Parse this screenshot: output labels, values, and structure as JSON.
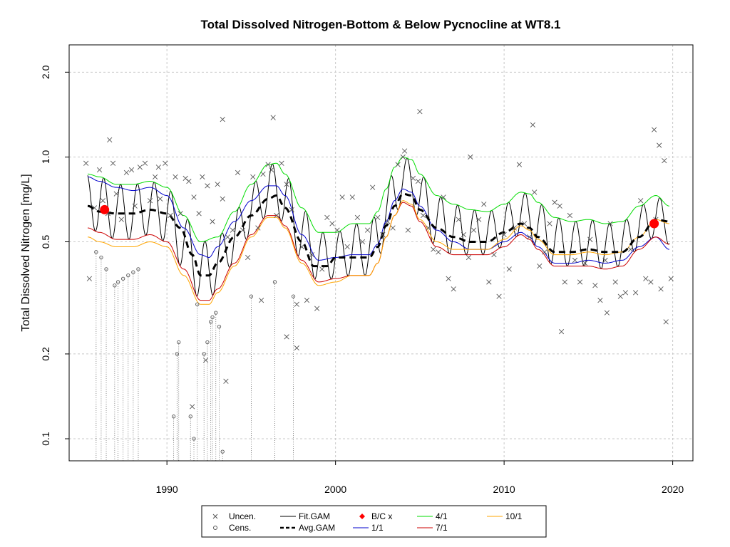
{
  "chart_data": {
    "type": "scatter",
    "title": "Total Dissolved Nitrogen-Bottom & Below Pycnocline at WT8.1",
    "xlabel": "",
    "ylabel": "Total Dissolved Nitrogen [mg/L]",
    "xlim": [
      1984.2,
      2021.2
    ],
    "ylim": [
      0.0835,
      2.5
    ],
    "y_scale": "log",
    "x_ticks": [
      1990,
      2000,
      2010,
      2020
    ],
    "y_ticks": [
      0.1,
      0.2,
      0.5,
      1.0,
      2.0
    ],
    "y_tick_labels": [
      "0.1",
      "0.2",
      "0.5",
      "1.0",
      "2.0"
    ],
    "grid": true,
    "legend_position": "bottom",
    "legend": [
      {
        "label": "Uncen.",
        "kind": "x-marker",
        "color": "#555555"
      },
      {
        "label": "Cens.",
        "kind": "circle-marker",
        "color": "#555555"
      },
      {
        "label": "Fit.GAM",
        "kind": "line",
        "color": "#000000"
      },
      {
        "label": "Avg.GAM",
        "kind": "dashed-line",
        "color": "#000000"
      },
      {
        "label": "B/C x",
        "kind": "diamond-marker",
        "color": "#ff0000"
      },
      {
        "label": "1/1",
        "kind": "line",
        "color": "#0000cc"
      },
      {
        "label": "4/1",
        "kind": "line",
        "color": "#00dd00"
      },
      {
        "label": "7/1",
        "kind": "line",
        "color": "#cc0000"
      },
      {
        "label": "10/1",
        "kind": "line",
        "color": "#ffa500"
      }
    ],
    "series": [
      {
        "name": "Avg.GAM",
        "x": [
          1985.3,
          1986,
          1987,
          1988,
          1989,
          1990,
          1990.8,
          1991.5,
          1992,
          1992.5,
          1993,
          1994,
          1995,
          1996,
          1996.5,
          1997,
          1998,
          1998.7,
          1999.5,
          2000,
          2001,
          2002,
          2002.5,
          2003,
          2003.5,
          2004,
          2004.5,
          2005,
          2006,
          2007,
          2008,
          2009,
          2010,
          2011,
          2011.5,
          2012,
          2013,
          2014,
          2015,
          2016,
          2017,
          2018,
          2019,
          2019.8
        ],
        "y": [
          0.67,
          0.64,
          0.63,
          0.63,
          0.65,
          0.63,
          0.56,
          0.45,
          0.38,
          0.38,
          0.42,
          0.52,
          0.62,
          0.71,
          0.73,
          0.66,
          0.5,
          0.41,
          0.41,
          0.44,
          0.44,
          0.44,
          0.48,
          0.57,
          0.67,
          0.74,
          0.73,
          0.65,
          0.56,
          0.52,
          0.5,
          0.5,
          0.54,
          0.58,
          0.56,
          0.52,
          0.46,
          0.46,
          0.47,
          0.46,
          0.46,
          0.52,
          0.6,
          0.59
        ]
      },
      {
        "name": "4/1",
        "x": [
          1985.3,
          1986,
          1987,
          1988,
          1989,
          1990,
          1991,
          1992,
          1993,
          1994,
          1995,
          1996,
          1996.5,
          1997,
          1998,
          1999,
          2000,
          2001,
          2002,
          2002.5,
          2003,
          2003.5,
          2004,
          2004.5,
          2005,
          2006,
          2007,
          2008,
          2009,
          2010,
          2011,
          2011.5,
          2012,
          2013,
          2014,
          2015,
          2016,
          2017,
          2018,
          2019,
          2019.8
        ],
        "y": [
          0.87,
          0.85,
          0.8,
          0.8,
          0.82,
          0.78,
          0.62,
          0.5,
          0.52,
          0.64,
          0.8,
          0.94,
          0.95,
          0.87,
          0.66,
          0.54,
          0.54,
          0.58,
          0.58,
          0.64,
          0.77,
          0.92,
          1.0,
          0.98,
          0.87,
          0.73,
          0.68,
          0.65,
          0.64,
          0.68,
          0.75,
          0.74,
          0.69,
          0.61,
          0.59,
          0.6,
          0.58,
          0.59,
          0.67,
          0.73,
          0.67
        ]
      },
      {
        "name": "1/1",
        "x": [
          1985.3,
          1986,
          1987,
          1988,
          1989,
          1990,
          1991,
          1992,
          1992.5,
          1993,
          1994,
          1995,
          1996,
          1996.5,
          1997,
          1998,
          1999,
          2000,
          2001,
          2002,
          2002.5,
          2003,
          2003.5,
          2004,
          2004.5,
          2005,
          2006,
          2007,
          2008,
          2009,
          2010,
          2011,
          2011.5,
          2012,
          2013,
          2014,
          2015,
          2016,
          2017,
          2018,
          2019,
          2019.8
        ],
        "y": [
          0.85,
          0.82,
          0.78,
          0.76,
          0.78,
          0.73,
          0.56,
          0.45,
          0.44,
          0.48,
          0.59,
          0.7,
          0.79,
          0.79,
          0.73,
          0.53,
          0.43,
          0.44,
          0.45,
          0.45,
          0.49,
          0.59,
          0.7,
          0.77,
          0.75,
          0.67,
          0.55,
          0.5,
          0.47,
          0.47,
          0.5,
          0.54,
          0.52,
          0.48,
          0.42,
          0.42,
          0.43,
          0.42,
          0.43,
          0.48,
          0.52,
          0.47
        ]
      },
      {
        "name": "7/1",
        "x": [
          1985.3,
          1986,
          1987,
          1988,
          1989,
          1990,
          1991,
          1992,
          1992.5,
          1993,
          1994,
          1995,
          1996,
          1996.5,
          1997,
          1998,
          1999,
          2000,
          2001,
          2002,
          2002.5,
          2003,
          2003.5,
          2004,
          2004.5,
          2005,
          2006,
          2007,
          2008,
          2009,
          2010,
          2011,
          2011.5,
          2012,
          2013,
          2014,
          2015,
          2016,
          2017,
          2018,
          2019,
          2019.8
        ],
        "y": [
          0.56,
          0.54,
          0.51,
          0.51,
          0.53,
          0.5,
          0.4,
          0.31,
          0.31,
          0.34,
          0.42,
          0.53,
          0.62,
          0.62,
          0.57,
          0.43,
          0.36,
          0.37,
          0.38,
          0.38,
          0.42,
          0.52,
          0.62,
          0.69,
          0.67,
          0.59,
          0.48,
          0.45,
          0.45,
          0.45,
          0.48,
          0.53,
          0.51,
          0.47,
          0.41,
          0.41,
          0.41,
          0.4,
          0.41,
          0.47,
          0.52,
          0.49
        ]
      },
      {
        "name": "10/1",
        "x": [
          1985.3,
          1986,
          1987,
          1988,
          1989,
          1990,
          1991,
          1992,
          1992.5,
          1993,
          1994,
          1995,
          1996,
          1996.5,
          1997,
          1998,
          1999,
          2000,
          2001,
          2002,
          2002.5,
          2003,
          2003.5,
          2004,
          2004.5,
          2005,
          2006,
          2007,
          2008,
          2009,
          2010,
          2011,
          2011.5,
          2012,
          2013,
          2014,
          2015,
          2016,
          2017,
          2018,
          2019,
          2019.8
        ],
        "y": [
          0.52,
          0.5,
          0.48,
          0.48,
          0.5,
          0.48,
          0.38,
          0.3,
          0.3,
          0.33,
          0.41,
          0.52,
          0.61,
          0.61,
          0.56,
          0.42,
          0.35,
          0.36,
          0.38,
          0.38,
          0.42,
          0.52,
          0.62,
          0.7,
          0.68,
          0.6,
          0.5,
          0.47,
          0.47,
          0.47,
          0.51,
          0.57,
          0.55,
          0.51,
          0.45,
          0.45,
          0.46,
          0.45,
          0.46,
          0.52,
          0.6,
          0.58
        ]
      },
      {
        "name": "Fit.GAM",
        "note": "seasonal oscillation between the 4/1 (peak, ~April) and 7/1/10/1 (trough, ~Aug) envelope curves"
      },
      {
        "name": "B/C x",
        "x": [
          1986.3,
          2018.9
        ],
        "y": [
          0.65,
          0.58
        ]
      },
      {
        "name": "Uncen.",
        "x": [
          1985.2,
          1985.4,
          1985.7,
          1986.0,
          1986.2,
          1986.5,
          1986.8,
          1987.0,
          1987.3,
          1987.6,
          1987.9,
          1988.1,
          1988.4,
          1988.7,
          1989.0,
          1989.3,
          1989.6,
          1989.9,
          1990.2,
          1990.5,
          1990.8,
          1991.1,
          1991.3,
          1991.6,
          1991.9,
          1992.1,
          1992.4,
          1992.7,
          1993.0,
          1993.3,
          1993.6,
          1993.9,
          1994.2,
          1994.5,
          1994.8,
          1995.1,
          1995.4,
          1995.7,
          1996.0,
          1996.2,
          1996.5,
          1996.8,
          1997.1,
          1997.4,
          1997.7,
          1998.0,
          1998.3,
          1998.6,
          1998.9,
          1999.2,
          1999.5,
          1999.8,
          2000.1,
          2000.4,
          2000.7,
          2001.0,
          2001.3,
          2001.6,
          2001.9,
          2002.2,
          2002.5,
          2002.8,
          2003.1,
          2003.4,
          2003.7,
          2004.0,
          2004.3,
          2004.6,
          2004.9,
          2005.2,
          2005.5,
          2005.8,
          2006.1,
          2006.4,
          2006.7,
          2007.0,
          2007.3,
          2007.6,
          2007.9,
          2008.2,
          2008.5,
          2008.8,
          2009.1,
          2009.4,
          2009.7,
          2010.0,
          2010.3,
          2010.6,
          2010.9,
          2011.2,
          2011.5,
          2011.8,
          2012.1,
          2012.4,
          2012.7,
          2013.0,
          2013.3,
          2013.6,
          2013.9,
          2014.2,
          2014.5,
          2014.8,
          2015.1,
          2015.4,
          2015.7,
          2016.0,
          2016.3,
          2016.6,
          2016.9,
          2017.2,
          2017.5,
          2017.8,
          2018.1,
          2018.4,
          2018.7,
          2019.0,
          2019.3,
          2019.6,
          2019.9,
          1996.3,
          1993.3,
          1997.1,
          2005.0,
          2011.7,
          2004.1,
          2018.9,
          2019.2,
          1986.6,
          1995.6,
          2008.0,
          2019.5,
          1997.7,
          1991.5,
          1992.3,
          1993.5,
          2013.4,
          1989.5,
          2016.1
        ],
        "y": [
          0.95,
          0.37,
          0.66,
          0.9,
          0.7,
          0.63,
          0.95,
          0.74,
          0.6,
          0.88,
          0.9,
          0.67,
          0.92,
          0.95,
          0.7,
          0.85,
          0.71,
          0.95,
          0.62,
          0.85,
          0.63,
          0.84,
          0.82,
          0.72,
          0.63,
          0.85,
          0.79,
          0.59,
          0.8,
          0.71,
          0.52,
          0.55,
          0.88,
          0.55,
          0.44,
          0.85,
          0.56,
          0.87,
          0.94,
          0.9,
          0.62,
          0.95,
          0.8,
          0.65,
          0.3,
          0.48,
          0.31,
          0.45,
          0.29,
          0.4,
          0.61,
          0.58,
          0.55,
          0.72,
          0.48,
          0.72,
          0.61,
          0.5,
          0.55,
          0.78,
          0.61,
          0.53,
          0.59,
          0.56,
          0.94,
          1.0,
          0.55,
          0.84,
          0.82,
          0.62,
          0.56,
          0.47,
          0.46,
          0.72,
          0.37,
          0.34,
          0.6,
          0.53,
          0.44,
          0.55,
          0.6,
          0.68,
          0.36,
          0.45,
          0.32,
          0.53,
          0.4,
          0.56,
          0.94,
          0.58,
          0.52,
          0.75,
          0.41,
          0.46,
          0.58,
          0.69,
          0.67,
          0.36,
          0.62,
          0.43,
          0.36,
          0.42,
          0.51,
          0.35,
          0.31,
          0.43,
          0.58,
          0.36,
          0.32,
          0.33,
          0.47,
          0.33,
          0.7,
          0.37,
          0.36,
          0.6,
          0.34,
          0.26,
          0.37,
          1.38,
          1.36,
          0.23,
          1.45,
          1.3,
          1.05,
          1.25,
          1.1,
          1.15,
          0.31,
          1.0,
          0.97,
          0.21,
          0.13,
          0.19,
          0.16,
          0.24,
          0.92,
          0.28
        ]
      },
      {
        "name": "Cens.",
        "x": [
          1985.8,
          1986.1,
          1986.4,
          1986.9,
          1987.1,
          1987.4,
          1987.7,
          1988.0,
          1988.3,
          1990.4,
          1990.6,
          1990.7,
          1991.4,
          1991.6,
          1991.8,
          1992.2,
          1992.4,
          1992.6,
          1992.7,
          1992.9,
          1993.1,
          1993.3,
          1995.0,
          1996.4,
          1997.5
        ],
        "y": [
          0.46,
          0.44,
          0.4,
          0.35,
          0.36,
          0.37,
          0.38,
          0.39,
          0.4,
          0.12,
          0.2,
          0.22,
          0.12,
          0.1,
          0.3,
          0.2,
          0.22,
          0.26,
          0.27,
          0.28,
          0.25,
          0.09,
          0.32,
          0.36,
          0.32
        ]
      }
    ]
  }
}
